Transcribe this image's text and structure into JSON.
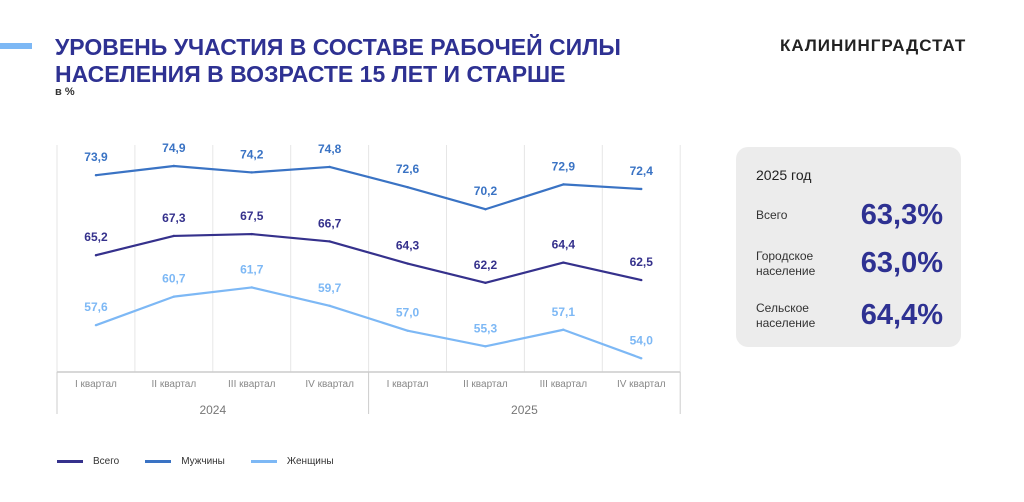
{
  "header": {
    "title": "УРОВЕНЬ УЧАСТИЯ В СОСТАВЕ РАБОЧЕЙ СИЛЫ НАСЕЛЕНИЯ В ВОЗРАСТЕ 15 ЛЕТ И СТАРШЕ",
    "unit": "в %",
    "logo": "КАЛИНИНГРАДСТАТ"
  },
  "summary": {
    "year": "2025 год",
    "rows": [
      {
        "label": "Всего",
        "value": "63,3%"
      },
      {
        "label": "Городское население",
        "value": "63,0%"
      },
      {
        "label": "Сельское население",
        "value": "64,4%"
      }
    ]
  },
  "chart_data": {
    "type": "line",
    "categories": [
      "I квартал",
      "II квартал",
      "III квартал",
      "IV квартал",
      "I квартал",
      "II квартал",
      "III квартал",
      "IV квартал"
    ],
    "groups": [
      {
        "label": "2024",
        "count": 4
      },
      {
        "label": "2025",
        "count": 4
      }
    ],
    "series": [
      {
        "name": "Всего",
        "color": "#35318c",
        "values": [
          65.2,
          67.3,
          67.5,
          66.7,
          64.3,
          62.2,
          64.4,
          62.5
        ],
        "labels": [
          "65,2",
          "67,3",
          "67,5",
          "66,7",
          "64,3",
          "62,2",
          "64,4",
          "62,5"
        ]
      },
      {
        "name": "Мужчины",
        "color": "#3a73c4",
        "values": [
          73.9,
          74.9,
          74.2,
          74.8,
          72.6,
          70.2,
          72.9,
          72.4
        ],
        "labels": [
          "73,9",
          "74,9",
          "74,2",
          "74,8",
          "72,6",
          "70,2",
          "72,9",
          "72,4"
        ]
      },
      {
        "name": "Женщины",
        "color": "#7db8f5",
        "values": [
          57.6,
          60.7,
          61.7,
          59.7,
          57.0,
          55.3,
          57.1,
          54.0
        ],
        "labels": [
          "57,6",
          "60,7",
          "61,7",
          "59,7",
          "57,0",
          "55,3",
          "57,1",
          "54,0"
        ]
      }
    ],
    "grid": "vertical",
    "legend": "bottom-left"
  }
}
